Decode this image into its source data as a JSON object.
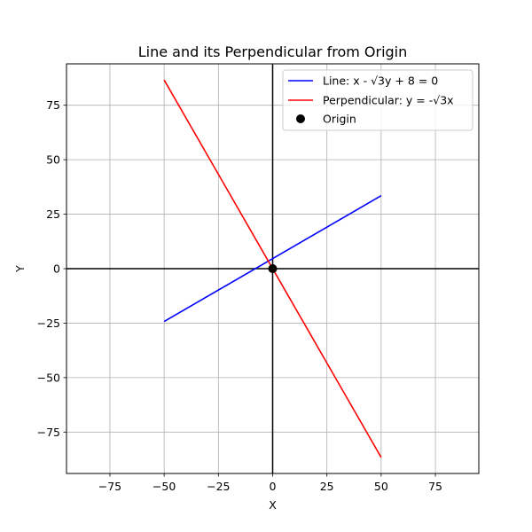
{
  "chart_data": {
    "type": "line",
    "title": "Line and its Perpendicular from Origin",
    "xlabel": "X",
    "ylabel": "Y",
    "xlim": [
      -95,
      95
    ],
    "ylim": [
      -94,
      94
    ],
    "xticks": [
      -75,
      -50,
      -25,
      0,
      25,
      50,
      75
    ],
    "yticks": [
      -75,
      -50,
      -25,
      0,
      25,
      50,
      75
    ],
    "xtick_labels": [
      "−75",
      "−50",
      "−25",
      "0",
      "25",
      "50",
      "75"
    ],
    "ytick_labels": [
      "−75",
      "−50",
      "−25",
      "0",
      "25",
      "50",
      "75"
    ],
    "grid": true,
    "legend_position": "top-right",
    "series": [
      {
        "name": "Line: x - √3y + 8 = 0",
        "kind": "line",
        "color": "#0000ff",
        "x": [
          -50,
          50
        ],
        "y": [
          -24.25,
          33.49
        ]
      },
      {
        "name": "Perpendicular: y = -√3x",
        "kind": "line",
        "color": "#ff0000",
        "x": [
          -50,
          50
        ],
        "y": [
          86.6,
          -86.6
        ]
      },
      {
        "name": "Origin",
        "kind": "marker",
        "color": "#000000",
        "x": [
          0
        ],
        "y": [
          0
        ]
      }
    ]
  }
}
